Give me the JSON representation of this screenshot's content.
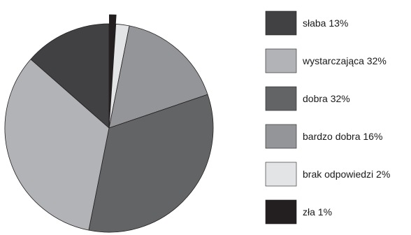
{
  "chart_data": {
    "type": "pie",
    "start_angle_deg": 0,
    "direction": "clockwise",
    "slices": [
      {
        "label": "zła 1%",
        "value": 1,
        "color": "#231f20",
        "exploded": true
      },
      {
        "label": "brak odpowiedzi 2%",
        "value": 2,
        "color": "#e3e4e5",
        "exploded": false
      },
      {
        "label": "bardzo dobra 16%",
        "value": 16,
        "color": "#939598",
        "exploded": false
      },
      {
        "label": "dobra 32%",
        "value": 32,
        "color": "#636466",
        "exploded": false
      },
      {
        "label": "wystarczająca 32%",
        "value": 32,
        "color": "#b1b3b6",
        "exploded": false
      },
      {
        "label": "słaba 13%",
        "value": 13,
        "color": "#414042",
        "exploded": false
      }
    ],
    "legend": [
      {
        "label": "słaba 13%",
        "color": "#414042"
      },
      {
        "label": "wystarczająca 32%",
        "color": "#b1b3b6"
      },
      {
        "label": "dobra 32%",
        "color": "#636466"
      },
      {
        "label": "bardzo dobra 16%",
        "color": "#939598"
      },
      {
        "label": "brak odpowiedzi 2%",
        "color": "#e3e4e5"
      },
      {
        "label": "zła 1%",
        "color": "#231f20"
      }
    ],
    "legend_position": "right"
  }
}
